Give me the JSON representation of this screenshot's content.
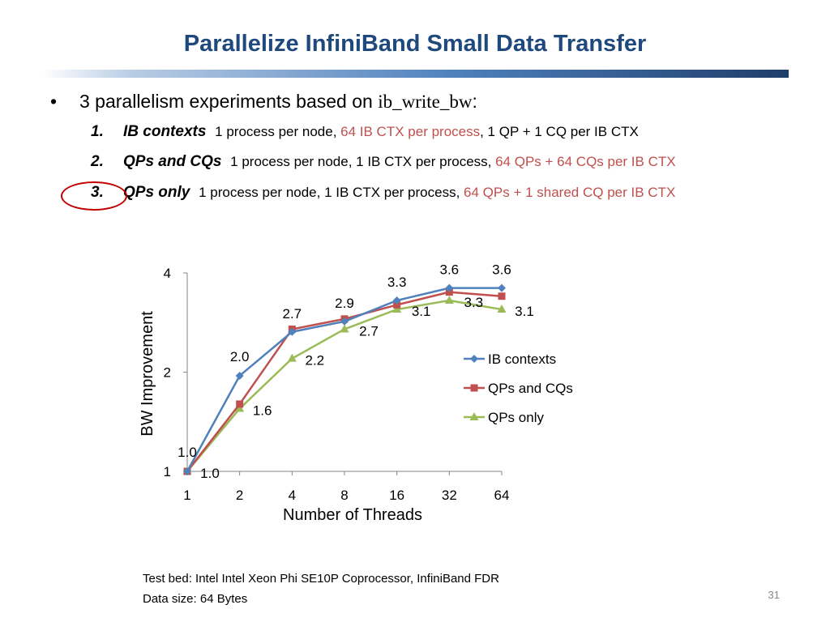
{
  "slide": {
    "title": "Parallelize InfiniBand Small Data Transfer",
    "bullet_text": "3 parallelism experiments based on ",
    "bullet_code": "ib_write_bw",
    "bullet_suffix": ":",
    "items": [
      {
        "num": "1.",
        "name": "IB contexts",
        "plain": "1 process per node,  ",
        "red": "64 IB CTX per process",
        "rest": ", 1 QP + 1 CQ per IB CTX"
      },
      {
        "num": "2.",
        "name": "QPs and CQs",
        "plain": "1 process per node, 1 IB CTX per process, ",
        "red": "64 QPs + 64 CQs per IB CTX",
        "rest": ""
      },
      {
        "num": "3.",
        "name": "QPs only",
        "plain": "1 process per node, 1 IB CTX per process, ",
        "red": "64 QPs + 1 shared CQ per IB CTX",
        "rest": ""
      }
    ],
    "footnote_line1": "Test bed:  Intel Intel Xeon Phi SE10P Coprocessor, InfiniBand FDR",
    "footnote_line2": "Data size:  64 Bytes",
    "page_number": "31"
  },
  "chart_data": {
    "type": "line",
    "categories": [
      "1",
      "2",
      "4",
      "8",
      "16",
      "32",
      "64"
    ],
    "y_scale": "log",
    "ylim": [
      1,
      4
    ],
    "y_ticks": [
      "1",
      "2",
      "4"
    ],
    "xlabel": "Number of Threads",
    "ylabel": "BW Improvement",
    "grid": false,
    "legend_position": "right",
    "series": [
      {
        "name": "IB contexts",
        "color": "#4f81bd",
        "marker": "diamond",
        "values": [
          1.0,
          1.95,
          2.65,
          2.85,
          3.3,
          3.6,
          3.6
        ],
        "labels": [
          "1.0",
          "2.0",
          "2.7",
          "2.9",
          "3.3",
          "3.6",
          "3.6"
        ],
        "label_shown": [
          true,
          true,
          true,
          true,
          true,
          true,
          true
        ]
      },
      {
        "name": "QPs and CQs",
        "color": "#c0504d",
        "marker": "square",
        "values": [
          1.0,
          1.6,
          2.7,
          2.9,
          3.2,
          3.5,
          3.4
        ],
        "labels": [
          "",
          "",
          "",
          "",
          "",
          "",
          ""
        ],
        "label_shown": [
          false,
          false,
          false,
          false,
          false,
          false,
          false
        ]
      },
      {
        "name": "QPs only",
        "color": "#9bbb59",
        "marker": "triangle",
        "values": [
          1.0,
          1.55,
          2.2,
          2.7,
          3.1,
          3.3,
          3.1
        ],
        "labels": [
          "1.0",
          "1.6",
          "2.2",
          "2.7",
          "3.1",
          "3.3",
          "3.1"
        ],
        "label_shown": [
          true,
          true,
          true,
          true,
          true,
          true,
          true
        ]
      }
    ]
  }
}
